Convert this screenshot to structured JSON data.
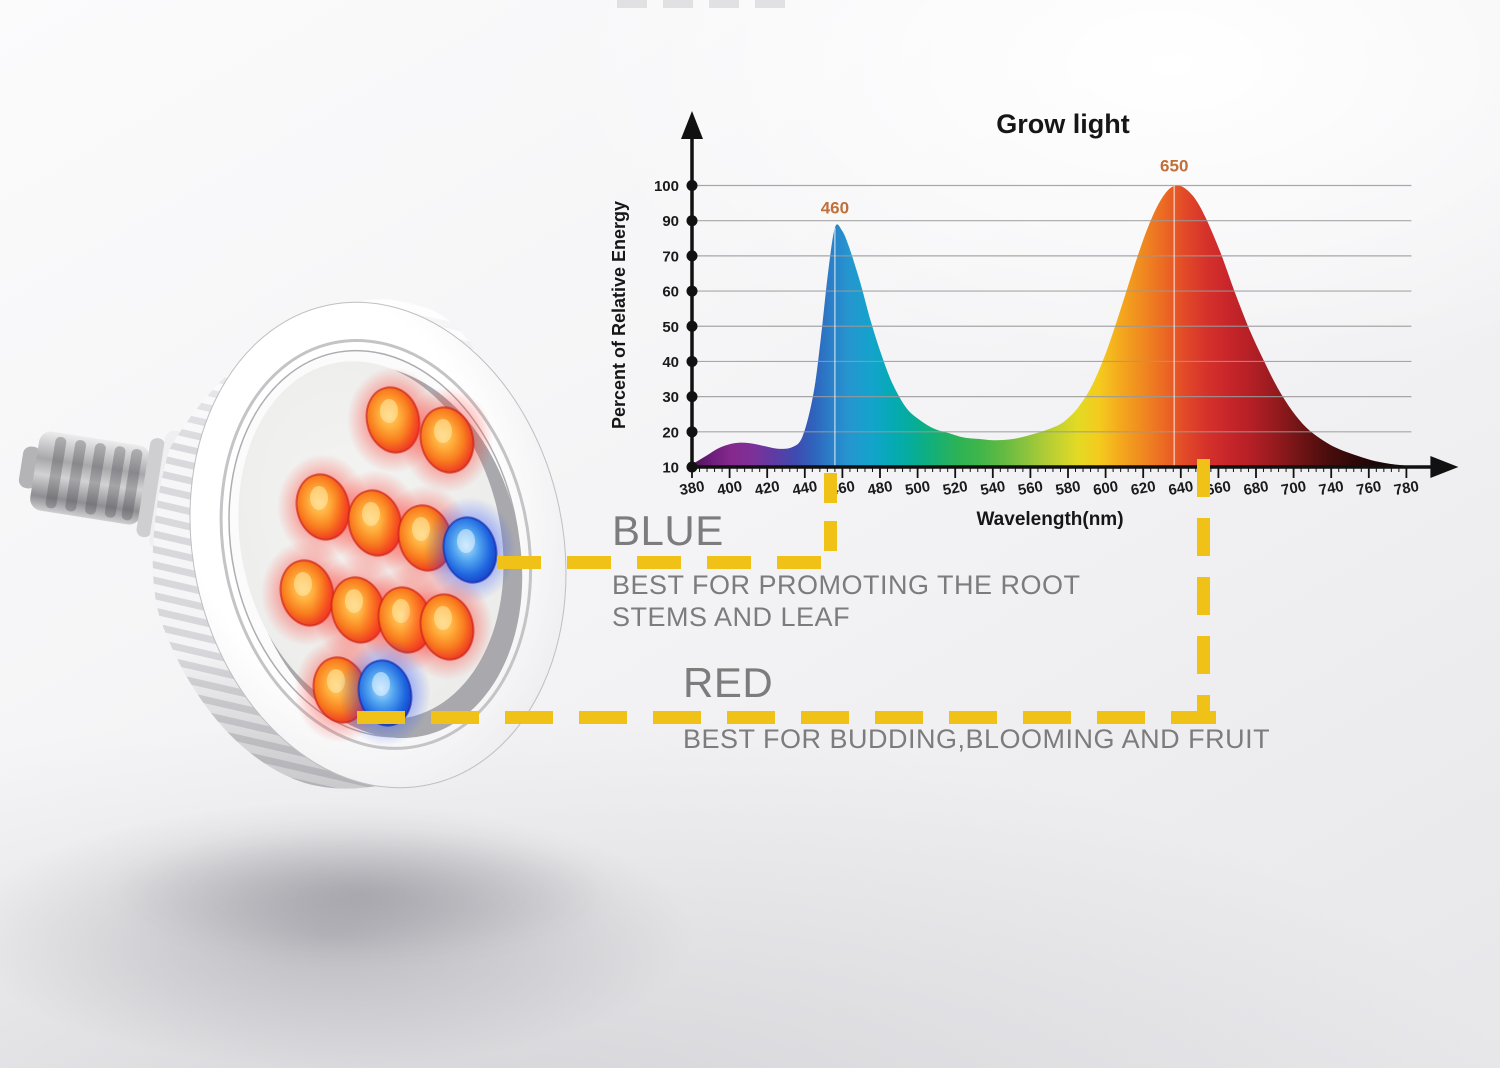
{
  "chart_data": {
    "type": "area",
    "title": "Grow light",
    "xlabel": "Wavelength(nm)",
    "ylabel": "Percent of Relative Energy",
    "x_tick_labels": [
      "380",
      "400",
      "420",
      "440",
      "460",
      "480",
      "500",
      "520",
      "540",
      "560",
      "580",
      "600",
      "620",
      "640",
      "660",
      "680",
      "700",
      "740",
      "760",
      "780"
    ],
    "y_tick_labels": [
      "100",
      "90",
      "70",
      "60",
      "50",
      "40",
      "30",
      "20",
      "10"
    ],
    "xlim_nm": [
      380,
      780
    ],
    "ylim": [
      0,
      100
    ],
    "grid": "horizontal",
    "peak_annotations": [
      {
        "label": "460",
        "x": 460,
        "y": 85
      },
      {
        "label": "650",
        "x": 650,
        "y": 100
      }
    ],
    "series": [
      {
        "name": "grow light relative energy",
        "points": [
          [
            380,
            1
          ],
          [
            388,
            4
          ],
          [
            396,
            7
          ],
          [
            404,
            8.5
          ],
          [
            412,
            8.5
          ],
          [
            420,
            7.5
          ],
          [
            428,
            6.5
          ],
          [
            436,
            7
          ],
          [
            442,
            11
          ],
          [
            448,
            26
          ],
          [
            452,
            45
          ],
          [
            456,
            68
          ],
          [
            460,
            85
          ],
          [
            464,
            84
          ],
          [
            468,
            78
          ],
          [
            474,
            66
          ],
          [
            480,
            52
          ],
          [
            486,
            40
          ],
          [
            492,
            30
          ],
          [
            500,
            21
          ],
          [
            508,
            16.5
          ],
          [
            516,
            13.5
          ],
          [
            524,
            12
          ],
          [
            532,
            10.5
          ],
          [
            540,
            10
          ],
          [
            550,
            9.5
          ],
          [
            560,
            10
          ],
          [
            570,
            11.5
          ],
          [
            580,
            13.5
          ],
          [
            588,
            16
          ],
          [
            596,
            21
          ],
          [
            604,
            29
          ],
          [
            612,
            41
          ],
          [
            620,
            56
          ],
          [
            628,
            72
          ],
          [
            634,
            83
          ],
          [
            640,
            92
          ],
          [
            646,
            98
          ],
          [
            651,
            100
          ],
          [
            656,
            99
          ],
          [
            662,
            95
          ],
          [
            668,
            88
          ],
          [
            676,
            76
          ],
          [
            684,
            62
          ],
          [
            692,
            49
          ],
          [
            700,
            38
          ],
          [
            708,
            28
          ],
          [
            716,
            20
          ],
          [
            724,
            14
          ],
          [
            732,
            10
          ],
          [
            740,
            7
          ],
          [
            750,
            4.5
          ],
          [
            760,
            2.5
          ],
          [
            770,
            1.2
          ],
          [
            780,
            0.5
          ]
        ]
      }
    ],
    "spectrum_colors": [
      [
        "380",
        "#4f1259"
      ],
      [
        "392",
        "#6f1f7d"
      ],
      [
        "402",
        "#85288c"
      ],
      [
        "414",
        "#7d3198"
      ],
      [
        "426",
        "#5e3ba3"
      ],
      [
        "438",
        "#3f4bb0"
      ],
      [
        "448",
        "#2f63bd"
      ],
      [
        "458",
        "#2b80c9"
      ],
      [
        "468",
        "#2596cf"
      ],
      [
        "480",
        "#14a3cc"
      ],
      [
        "492",
        "#05aab5"
      ],
      [
        "504",
        "#06ad97"
      ],
      [
        "516",
        "#15b075"
      ],
      [
        "528",
        "#2cb258"
      ],
      [
        "540",
        "#3db54a"
      ],
      [
        "554",
        "#62ba43"
      ],
      [
        "568",
        "#8fc43d"
      ],
      [
        "582",
        "#bcd032"
      ],
      [
        "596",
        "#e3da24"
      ],
      [
        "608",
        "#f4cb1e"
      ],
      [
        "620",
        "#f4a81d"
      ],
      [
        "632",
        "#f08a20"
      ],
      [
        "644",
        "#ec6a23"
      ],
      [
        "656",
        "#e24928"
      ],
      [
        "668",
        "#d6322b"
      ],
      [
        "680",
        "#c8262b"
      ],
      [
        "694",
        "#b21f25"
      ],
      [
        "708",
        "#921a1d"
      ],
      [
        "722",
        "#6d1314"
      ],
      [
        "736",
        "#4a0d0d"
      ],
      [
        "752",
        "#2c0808"
      ],
      [
        "768",
        "#190505"
      ],
      [
        "780",
        "#120404"
      ]
    ],
    "peak_label_color": "#c0703a",
    "axis_color": "#111111",
    "grid_color": "#9a9a9a"
  },
  "annotations": {
    "blue": {
      "title": "BLUE",
      "line1": "BEST FOR PROMOTING THE ROOT",
      "line2": "STEMS AND LEAF"
    },
    "red": {
      "title": "RED",
      "line1": "BEST FOR BUDDING,BLOOMING AND FRUIT"
    },
    "text_color": "#7c7c7c",
    "connector_color": "#f0c116"
  },
  "bulb": {
    "description": "white PAR38 LED grow light bulb, finned heatsink, E27 screw base",
    "red_led_count": 10,
    "blue_led_count": 2,
    "led_colors": {
      "red": "#e8391f",
      "blue": "#1d4fd0"
    }
  }
}
